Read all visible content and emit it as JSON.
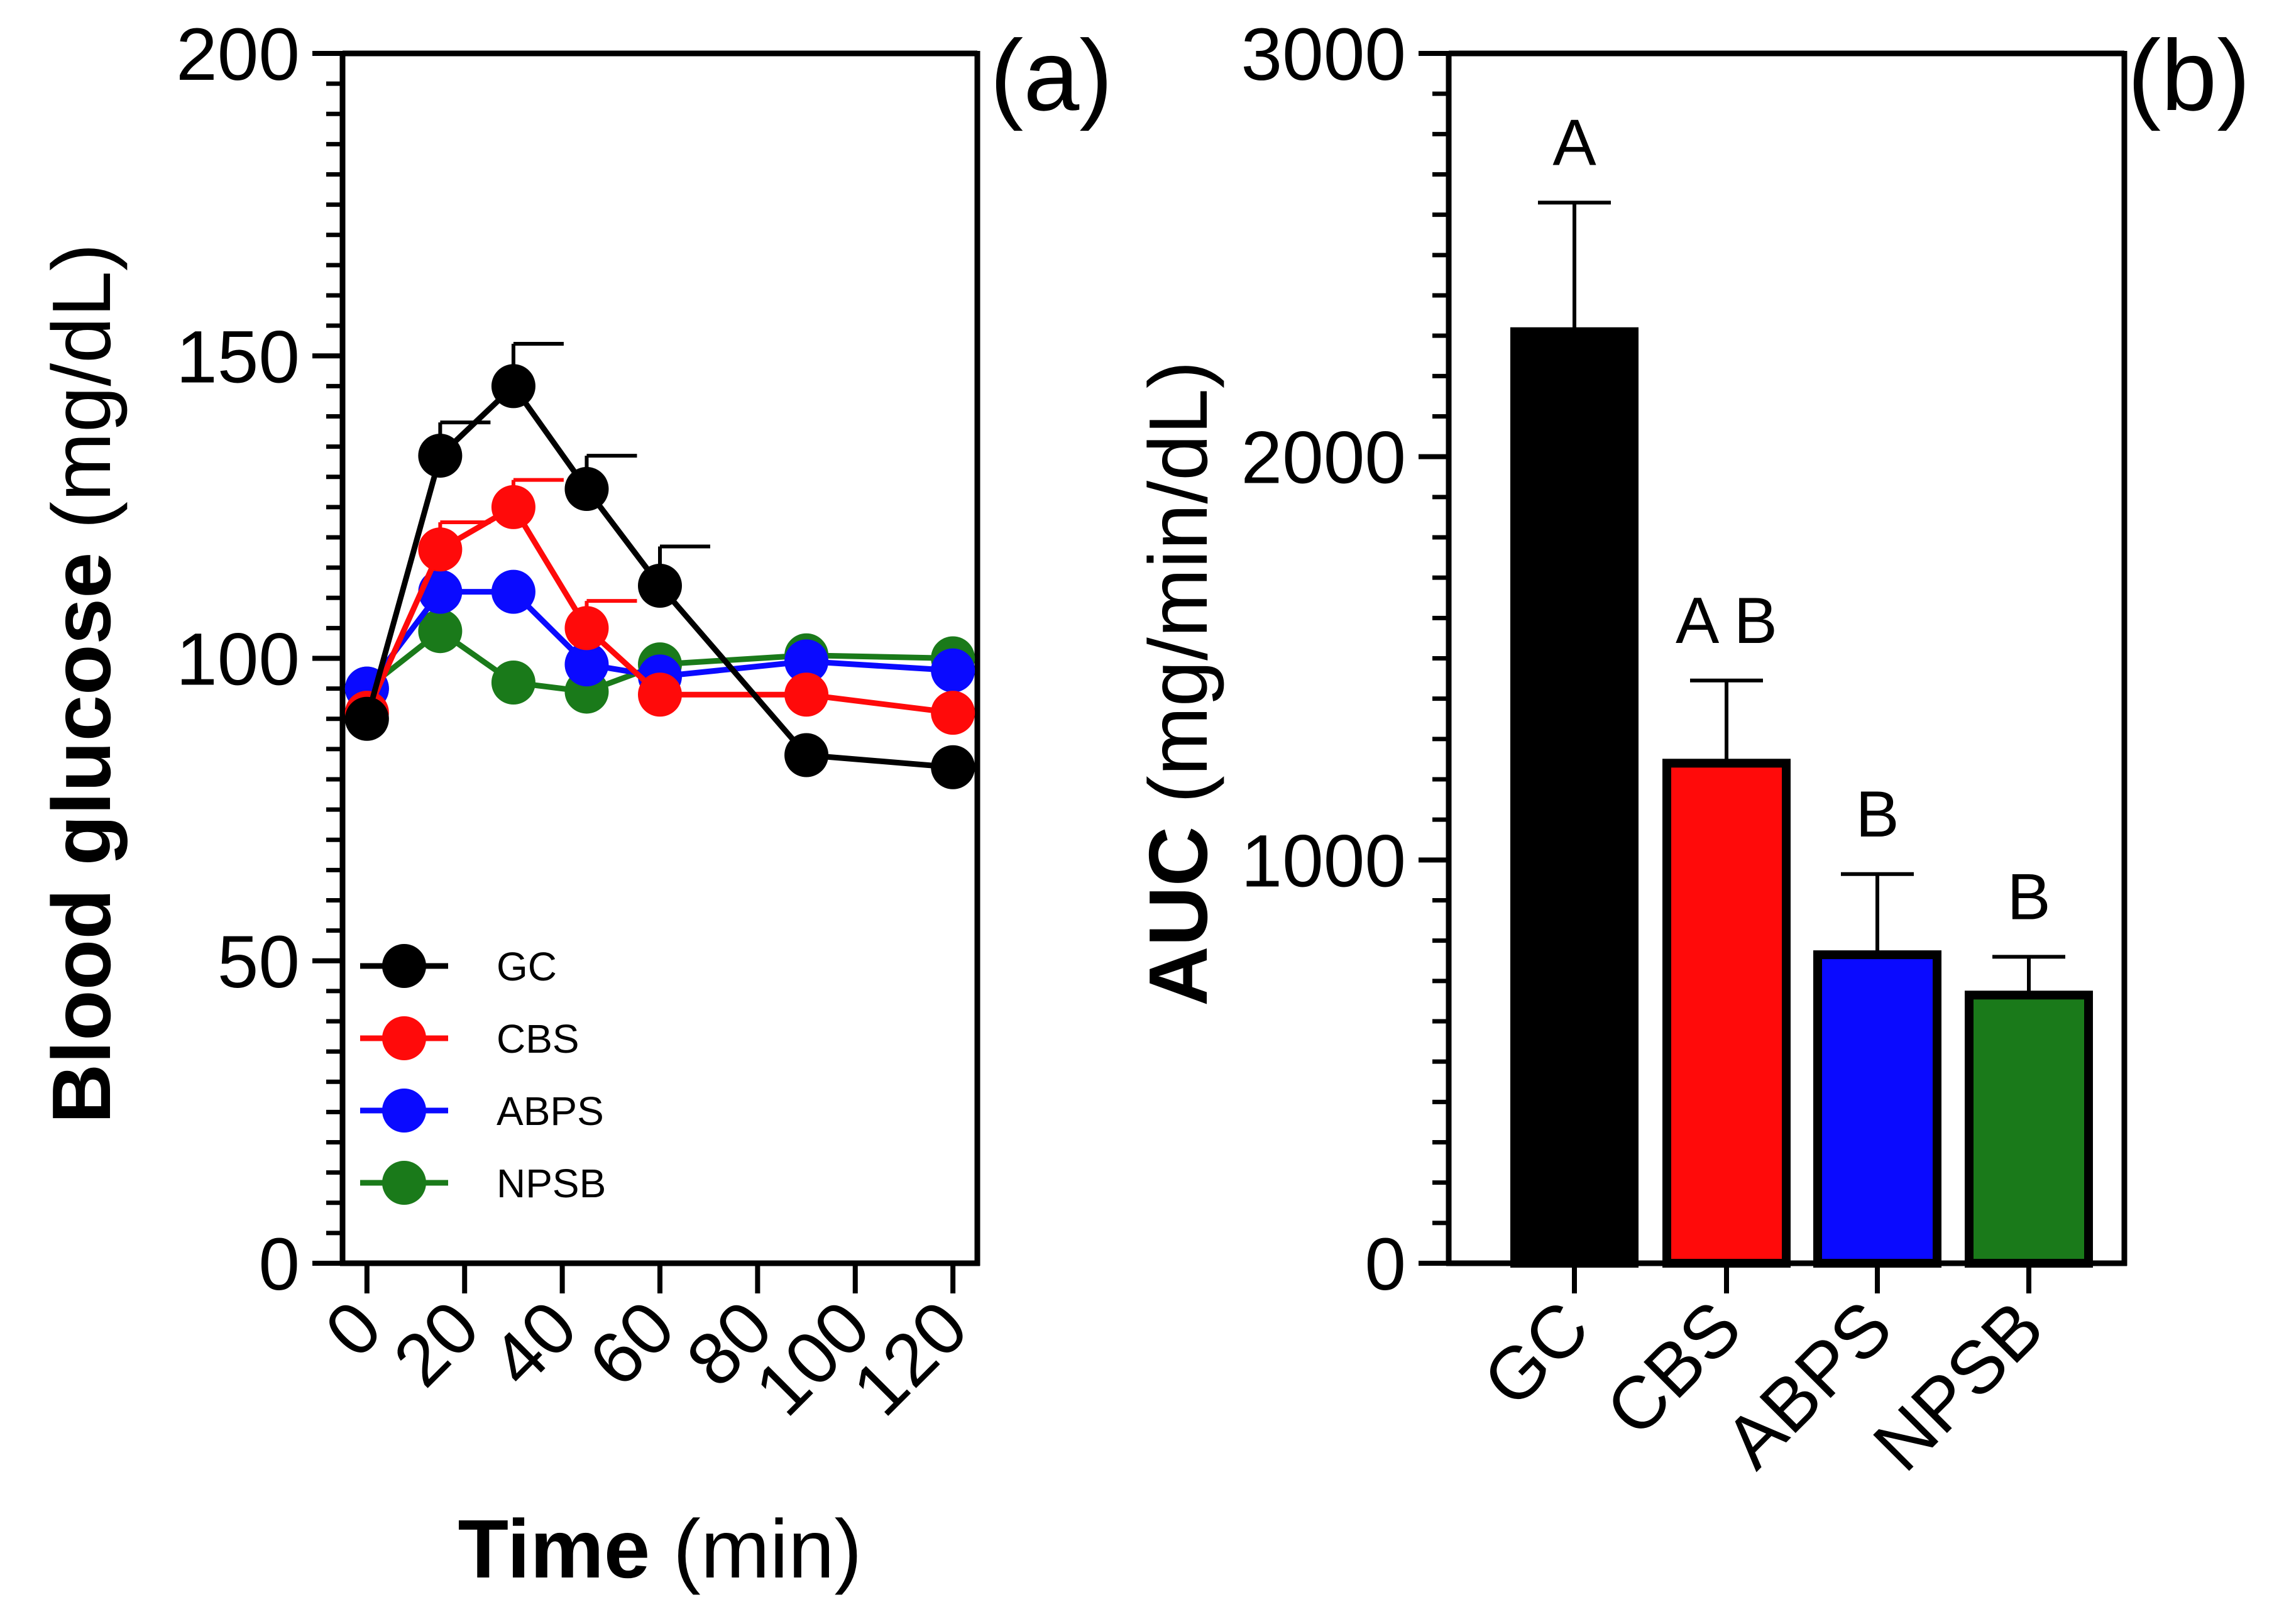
{
  "chart_data": [
    {
      "panel_label": "(a)",
      "type": "line",
      "ylabel_bold": "Blood glucose",
      "ylabel_rest": " (mg/dL)",
      "xlabel_bold": "Time",
      "xlabel_rest": " (min)",
      "xlim": [
        -5,
        125
      ],
      "ylim": [
        0,
        200
      ],
      "xticks": [
        0,
        20,
        40,
        60,
        80,
        100,
        120
      ],
      "xtick_labels": [
        "0",
        "20",
        "40",
        "60",
        "80",
        "100",
        "120"
      ],
      "yticks": [
        0,
        50,
        100,
        150,
        200
      ],
      "ytick_labels": [
        "0",
        "50",
        "100",
        "150",
        "200"
      ],
      "yminor_step": 5,
      "legend_position": "lower-left",
      "x": [
        0,
        15,
        30,
        45,
        60,
        90,
        120
      ],
      "series": [
        {
          "name": "GC",
          "color": "#000000",
          "values": [
            90,
            133.5,
            145,
            128,
            112,
            84,
            82
          ],
          "errors": [
            0,
            5.5,
            7,
            5.5,
            6.5,
            0,
            0
          ]
        },
        {
          "name": "CBS",
          "color": "#ff0a0a",
          "values": [
            91,
            118,
            125,
            105,
            94,
            94,
            91
          ],
          "errors": [
            0,
            4.5,
            4.5,
            4.5,
            0,
            0,
            0
          ]
        },
        {
          "name": "ABPS",
          "color": "#0a0aff",
          "values": [
            95,
            111,
            111,
            99,
            97,
            99.5,
            98
          ],
          "errors": [
            0,
            0,
            0,
            0,
            0,
            0,
            0
          ]
        },
        {
          "name": "NPSB",
          "color": "#1a7a1a",
          "values": [
            95,
            104.5,
            96,
            94.5,
            99,
            100.5,
            100
          ],
          "errors": [
            0,
            0,
            0,
            0,
            0,
            0,
            0
          ]
        }
      ]
    },
    {
      "panel_label": "(b)",
      "type": "bar",
      "ylabel_bold": "AUC",
      "ylabel_rest": " (mg/min/dL)",
      "ylim": [
        0,
        3000
      ],
      "yticks": [
        0,
        1000,
        2000,
        3000
      ],
      "ytick_labels": [
        "0",
        "1000",
        "2000",
        "3000"
      ],
      "yminor_step": 100,
      "categories": [
        "GC",
        "CBS",
        "ABPS",
        "NPSB"
      ],
      "colors": [
        "#000000",
        "#ff0a0a",
        "#0a0aff",
        "#1a7a1a"
      ],
      "values": [
        2310,
        1240,
        765,
        665
      ],
      "errors": [
        320,
        205,
        200,
        95
      ],
      "letters": [
        "A",
        "A B",
        "B",
        "B"
      ]
    }
  ]
}
